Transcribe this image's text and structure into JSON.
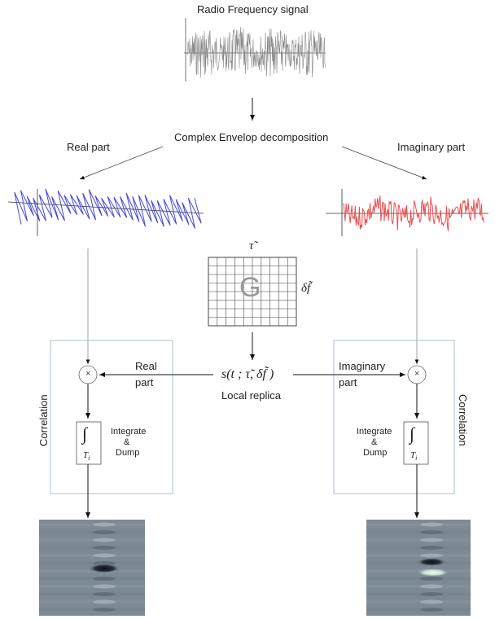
{
  "title": "Radio Frequency signal",
  "decomposition": "Complex Envelop decomposition",
  "real_part": "Real part",
  "imaginary_part": "Imaginary part",
  "grid": {
    "top_symbol": "τ̃",
    "right_symbol": "δf̃",
    "center_letter": "G"
  },
  "replica": {
    "formula": "s(t ; τ̃, δf̃ )",
    "label": "Local replica"
  },
  "left_block": {
    "side_label": "Correlation",
    "input_label_1": "Real",
    "input_label_2": "part",
    "multiplier": "×",
    "integrator": "∫",
    "integrator_sub": "T",
    "integrator_sub_index": "i",
    "dump_1": "Integrate",
    "dump_2": "&",
    "dump_3": "Dump"
  },
  "right_block": {
    "side_label": "Correlation",
    "input_label_1": "Imaginary",
    "input_label_2": "part",
    "multiplier": "×",
    "integrator": "∫",
    "integrator_sub": "T",
    "integrator_sub_index": "i",
    "dump_1": "Integrate",
    "dump_2": "&",
    "dump_3": "Dump"
  },
  "colors": {
    "real_wave": "#4646d8",
    "imag_wave": "#e85050",
    "rf_wave": "#888888",
    "box_border": "#a8c0d0",
    "map_bg": "#7d8a96"
  }
}
